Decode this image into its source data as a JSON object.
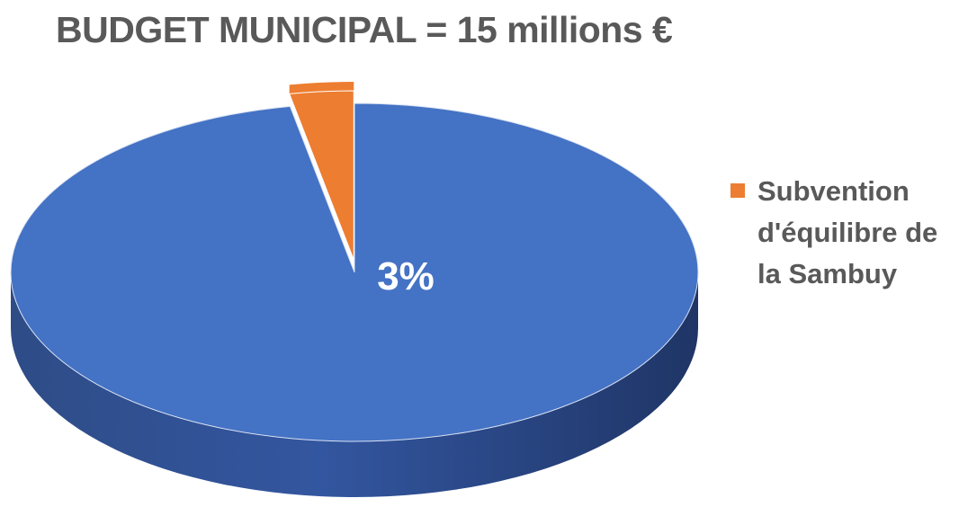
{
  "chart_data": {
    "type": "pie",
    "title": "BUDGET MUNICIPAL = 15 millions €",
    "style": "3d",
    "legend_position": "right",
    "slices": [
      {
        "label": "",
        "value": 97,
        "color": "#4472C4",
        "side_color": "#2F4E8A"
      },
      {
        "label": "Subvention d'équilibre de la Sambuy",
        "value": 3,
        "color": "#ED7D31",
        "side_color": "#B85E20",
        "exploded": true
      }
    ],
    "data_labels": [
      {
        "slice": 1,
        "text": "3%"
      }
    ],
    "legend": [
      {
        "label": "Subvention\nd'équilibre de\nla Sambuy",
        "color": "#ED7D31"
      }
    ]
  }
}
